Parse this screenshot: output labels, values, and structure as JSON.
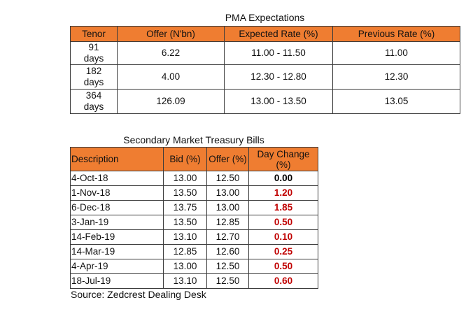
{
  "pma": {
    "title": "PMA Expectations",
    "headers": [
      "Tenor",
      "Offer (N'bn)",
      "Expected Rate (%)",
      "Previous Rate (%)"
    ],
    "rows": [
      [
        "91 days",
        "6.22",
        "11.00 - 11.50",
        "11.00"
      ],
      [
        "182 days",
        "4.00",
        "12.30 - 12.80",
        "12.30"
      ],
      [
        "364 days",
        "126.09",
        "13.00 - 13.50",
        "13.05"
      ]
    ]
  },
  "secondary": {
    "title": "Secondary Market Treasury Bills",
    "headers": [
      "Description",
      "Bid (%)",
      "Offer (%)",
      "Day Change (%)"
    ],
    "rows": [
      [
        "4-Oct-18",
        "13.00",
        "12.50",
        "0.00"
      ],
      [
        "1-Nov-18",
        "13.50",
        "13.00",
        "1.20"
      ],
      [
        "6-Dec-18",
        "13.75",
        "13.00",
        "1.85"
      ],
      [
        "3-Jan-19",
        "13.50",
        "12.85",
        "0.50"
      ],
      [
        "14-Feb-19",
        "13.10",
        "12.70",
        "0.10"
      ],
      [
        "14-Mar-19",
        "12.85",
        "12.60",
        "0.25"
      ],
      [
        "4-Apr-19",
        "13.00",
        "12.50",
        "0.50"
      ],
      [
        "18-Jul-19",
        "13.10",
        "12.50",
        "0.60"
      ]
    ],
    "change_colors": {
      "zero": "#000000",
      "positive": "#c00000"
    }
  },
  "source": "Source: Zedcrest Dealing Desk",
  "colors": {
    "header_fill": "#ef7d31",
    "border": "#3c3c3c"
  }
}
